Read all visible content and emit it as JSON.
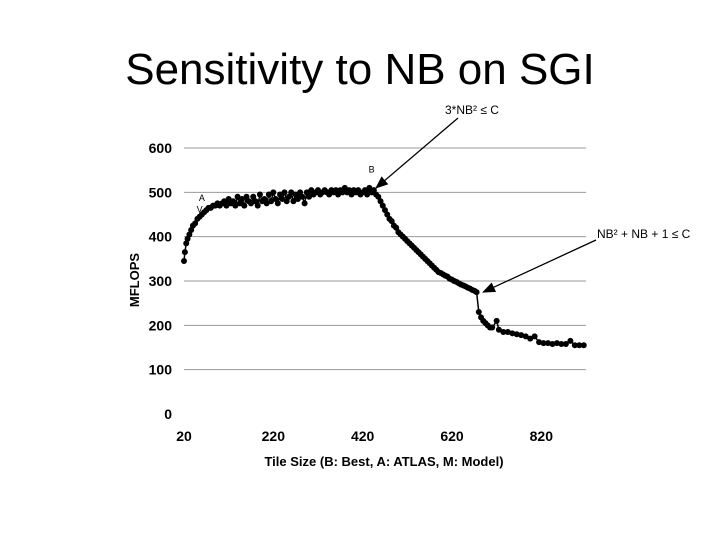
{
  "slide": {
    "title": "Sensitivity to NB on SGI"
  },
  "chart_data": {
    "type": "scatter",
    "xlabel": "Tile Size (B: Best, A: ATLAS, M: Model)",
    "ylabel": "MFLOPS",
    "xlim": [
      20,
      920
    ],
    "ylim": [
      0,
      600
    ],
    "xticks": [
      20,
      220,
      420,
      620,
      820
    ],
    "yticks": [
      0,
      100,
      200,
      300,
      400,
      500,
      600
    ],
    "grid": "horizontal",
    "marker_color": "#000000",
    "points": [
      [
        20,
        345
      ],
      [
        22,
        365
      ],
      [
        25,
        385
      ],
      [
        28,
        395
      ],
      [
        32,
        405
      ],
      [
        36,
        415
      ],
      [
        40,
        425
      ],
      [
        45,
        430
      ],
      [
        50,
        440
      ],
      [
        55,
        445
      ],
      [
        60,
        450
      ],
      [
        65,
        455
      ],
      [
        70,
        460
      ],
      [
        75,
        465
      ],
      [
        80,
        465
      ],
      [
        85,
        470
      ],
      [
        90,
        470
      ],
      [
        95,
        475
      ],
      [
        100,
        470
      ],
      [
        105,
        475
      ],
      [
        110,
        480
      ],
      [
        115,
        470
      ],
      [
        120,
        485
      ],
      [
        125,
        475
      ],
      [
        130,
        480
      ],
      [
        135,
        470
      ],
      [
        140,
        490
      ],
      [
        145,
        475
      ],
      [
        150,
        485
      ],
      [
        155,
        470
      ],
      [
        160,
        490
      ],
      [
        165,
        480
      ],
      [
        170,
        475
      ],
      [
        175,
        490
      ],
      [
        180,
        480
      ],
      [
        185,
        470
      ],
      [
        190,
        495
      ],
      [
        195,
        480
      ],
      [
        200,
        485
      ],
      [
        205,
        475
      ],
      [
        210,
        495
      ],
      [
        215,
        480
      ],
      [
        220,
        500
      ],
      [
        225,
        485
      ],
      [
        230,
        475
      ],
      [
        235,
        495
      ],
      [
        240,
        485
      ],
      [
        245,
        500
      ],
      [
        250,
        480
      ],
      [
        255,
        490
      ],
      [
        260,
        500
      ],
      [
        265,
        480
      ],
      [
        270,
        495
      ],
      [
        275,
        485
      ],
      [
        280,
        500
      ],
      [
        285,
        490
      ],
      [
        290,
        475
      ],
      [
        295,
        500
      ],
      [
        300,
        490
      ],
      [
        305,
        505
      ],
      [
        310,
        495
      ],
      [
        315,
        500
      ],
      [
        320,
        505
      ],
      [
        325,
        495
      ],
      [
        330,
        500
      ],
      [
        335,
        505
      ],
      [
        340,
        500
      ],
      [
        345,
        495
      ],
      [
        350,
        505
      ],
      [
        355,
        500
      ],
      [
        360,
        505
      ],
      [
        365,
        495
      ],
      [
        370,
        505
      ],
      [
        375,
        500
      ],
      [
        380,
        510
      ],
      [
        385,
        500
      ],
      [
        390,
        505
      ],
      [
        395,
        495
      ],
      [
        400,
        505
      ],
      [
        405,
        500
      ],
      [
        410,
        505
      ],
      [
        415,
        495
      ],
      [
        420,
        500
      ],
      [
        425,
        505
      ],
      [
        430,
        495
      ],
      [
        435,
        510
      ],
      [
        440,
        500
      ],
      [
        445,
        505
      ],
      [
        450,
        495
      ],
      [
        455,
        490
      ],
      [
        460,
        480
      ],
      [
        465,
        470
      ],
      [
        470,
        460
      ],
      [
        475,
        450
      ],
      [
        480,
        440
      ],
      [
        485,
        435
      ],
      [
        490,
        425
      ],
      [
        495,
        420
      ],
      [
        500,
        410
      ],
      [
        505,
        405
      ],
      [
        510,
        400
      ],
      [
        515,
        395
      ],
      [
        520,
        390
      ],
      [
        525,
        385
      ],
      [
        530,
        380
      ],
      [
        535,
        375
      ],
      [
        540,
        370
      ],
      [
        545,
        365
      ],
      [
        550,
        360
      ],
      [
        555,
        355
      ],
      [
        560,
        350
      ],
      [
        565,
        345
      ],
      [
        570,
        340
      ],
      [
        575,
        335
      ],
      [
        580,
        330
      ],
      [
        585,
        325
      ],
      [
        590,
        320
      ],
      [
        595,
        318
      ],
      [
        600,
        315
      ],
      [
        605,
        312
      ],
      [
        610,
        310
      ],
      [
        615,
        305
      ],
      [
        620,
        303
      ],
      [
        625,
        300
      ],
      [
        630,
        298
      ],
      [
        635,
        295
      ],
      [
        640,
        292
      ],
      [
        645,
        290
      ],
      [
        650,
        288
      ],
      [
        655,
        285
      ],
      [
        660,
        283
      ],
      [
        665,
        280
      ],
      [
        670,
        278
      ],
      [
        675,
        275
      ],
      [
        680,
        230
      ],
      [
        685,
        218
      ],
      [
        690,
        210
      ],
      [
        695,
        205
      ],
      [
        700,
        200
      ],
      [
        705,
        195
      ],
      [
        710,
        195
      ],
      [
        720,
        210
      ],
      [
        725,
        190
      ],
      [
        735,
        185
      ],
      [
        745,
        185
      ],
      [
        755,
        182
      ],
      [
        765,
        180
      ],
      [
        775,
        178
      ],
      [
        785,
        175
      ],
      [
        795,
        170
      ],
      [
        805,
        175
      ],
      [
        815,
        162
      ],
      [
        825,
        160
      ],
      [
        835,
        160
      ],
      [
        845,
        158
      ],
      [
        855,
        160
      ],
      [
        865,
        158
      ],
      [
        875,
        158
      ],
      [
        885,
        165
      ],
      [
        895,
        155
      ],
      [
        905,
        155
      ],
      [
        915,
        155
      ]
    ],
    "markers": [
      {
        "label": "A",
        "x": 60,
        "y": 480
      },
      {
        "label": "V",
        "x": 55,
        "y": 455
      },
      {
        "label": "B",
        "x": 440,
        "y": 545
      }
    ],
    "annotations": [
      {
        "text": "3*NB² ≤ C",
        "target": [
          450,
          510
        ]
      },
      {
        "text": "NB² + NB + 1 ≤ C",
        "target": [
          690,
          275
        ]
      }
    ]
  }
}
